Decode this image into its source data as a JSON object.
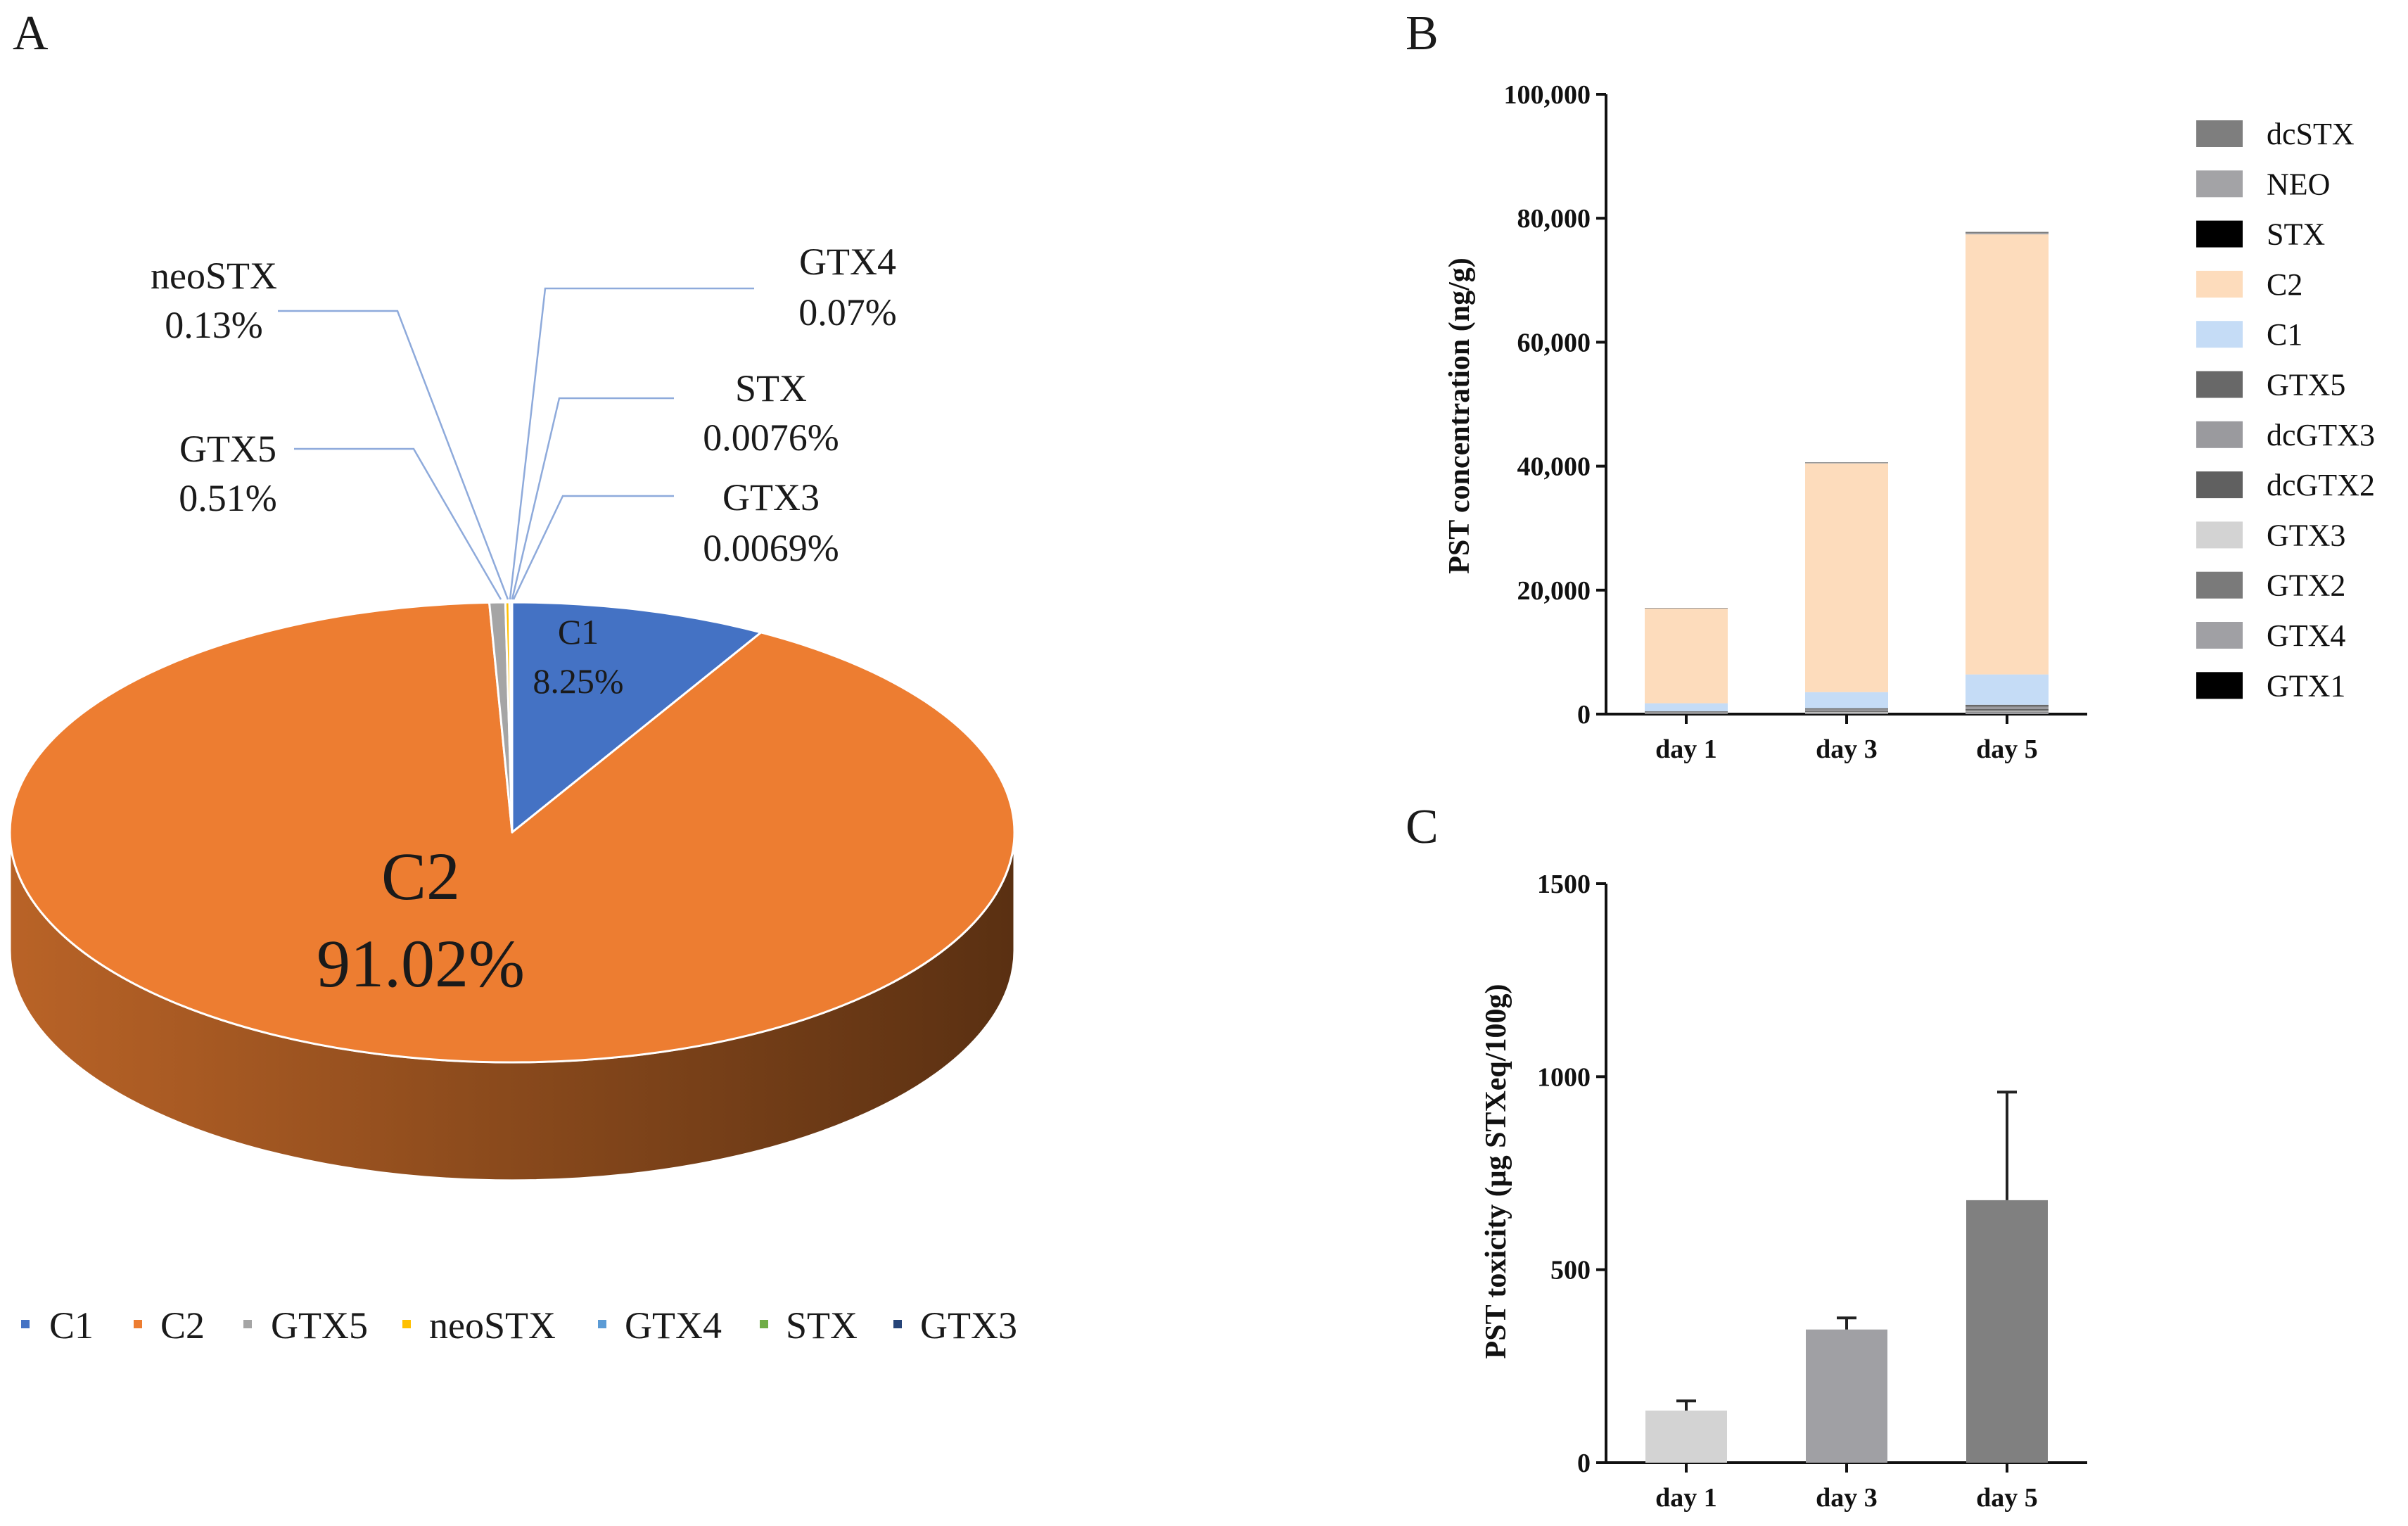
{
  "panels": {
    "a": "A",
    "b": "B",
    "c": "C"
  },
  "colors": {
    "C1": "#4472c4",
    "C2": "#ed7d31",
    "GTX5": "#a5a5a5",
    "neoSTX": "#ffc000",
    "GTX4": "#5b9bd5",
    "STX": "#70ad47",
    "GTX3": "#264478",
    "callout_line": "#8eaadb",
    "axis": "#111111"
  },
  "chart_data": [
    {
      "type": "pie",
      "panel": "A",
      "title": "",
      "slices": [
        {
          "label": "C1",
          "value": 8.25,
          "text": "8.25%"
        },
        {
          "label": "C2",
          "value": 91.02,
          "text": "91.02%"
        },
        {
          "label": "GTX5",
          "value": 0.51,
          "text": "0.51%"
        },
        {
          "label": "neoSTX",
          "value": 0.13,
          "text": "0.13%"
        },
        {
          "label": "GTX4",
          "value": 0.07,
          "text": "0.07%"
        },
        {
          "label": "STX",
          "value": 0.0076,
          "text": "0.0076%"
        },
        {
          "label": "GTX3",
          "value": 0.0069,
          "text": "0.0069%"
        }
      ],
      "legend": [
        "C1",
        "C2",
        "GTX5",
        "neoSTX",
        "GTX4",
        "STX",
        "GTX3"
      ],
      "legend_position": "bottom"
    },
    {
      "type": "bar",
      "stacked": true,
      "panel": "B",
      "title": "",
      "categories": [
        "day 1",
        "day 3",
        "day 5"
      ],
      "xlabel": "",
      "ylabel": "PST concentration (ng/g)",
      "ylim": [
        0,
        100000
      ],
      "yticks": [
        0,
        20000,
        40000,
        60000,
        80000,
        100000
      ],
      "ytick_labels": [
        "0",
        "20,000",
        "40,000",
        "60,000",
        "80,000",
        "100,000"
      ],
      "series": [
        {
          "name": "GTX1",
          "color": "#000000",
          "values": [
            0,
            0,
            0
          ]
        },
        {
          "name": "GTX4",
          "color": "#a0a0a4",
          "values": [
            100,
            150,
            250
          ]
        },
        {
          "name": "GTX2",
          "color": "#7a7a7a",
          "values": [
            50,
            100,
            150
          ]
        },
        {
          "name": "GTX3",
          "color": "#d3d3d3",
          "values": [
            50,
            100,
            150
          ]
        },
        {
          "name": "dcGTX2",
          "color": "#606060",
          "values": [
            50,
            150,
            250
          ]
        },
        {
          "name": "dcGTX3",
          "color": "#9a9a9e",
          "values": [
            100,
            250,
            400
          ]
        },
        {
          "name": "GTX5",
          "color": "#686868",
          "values": [
            100,
            200,
            300
          ]
        },
        {
          "name": "C1",
          "color": "#c5dcf6",
          "values": [
            1300,
            2600,
            4900
          ]
        },
        {
          "name": "C2",
          "color": "#fddcbc",
          "values": [
            15300,
            36900,
            71000
          ]
        },
        {
          "name": "STX",
          "color": "#000000",
          "values": [
            0,
            0,
            0
          ]
        },
        {
          "name": "NEO",
          "color": "#a3a3a6",
          "values": [
            30,
            80,
            200
          ]
        },
        {
          "name": "dcSTX",
          "color": "#7e7e7e",
          "values": [
            50,
            100,
            200
          ]
        }
      ],
      "legend": [
        "dcSTX",
        "NEO",
        "STX",
        "C2",
        "C1",
        "GTX5",
        "dcGTX3",
        "dcGTX2",
        "GTX3",
        "GTX2",
        "GTX4",
        "GTX1"
      ],
      "legend_position": "right"
    },
    {
      "type": "bar",
      "panel": "C",
      "title": "",
      "categories": [
        "day 1",
        "day 3",
        "day 5"
      ],
      "values": [
        135,
        345,
        680
      ],
      "errors": [
        25,
        30,
        280
      ],
      "colors": [
        "#d3d3d3",
        "#a0a0a4",
        "#808080"
      ],
      "xlabel": "",
      "ylabel": "PST toxicity (μg STXeq/100g)",
      "ylim": [
        0,
        1500
      ],
      "yticks": [
        0,
        500,
        1000,
        1500
      ],
      "ytick_labels": [
        "0",
        "500",
        "1000",
        "1500"
      ]
    }
  ]
}
